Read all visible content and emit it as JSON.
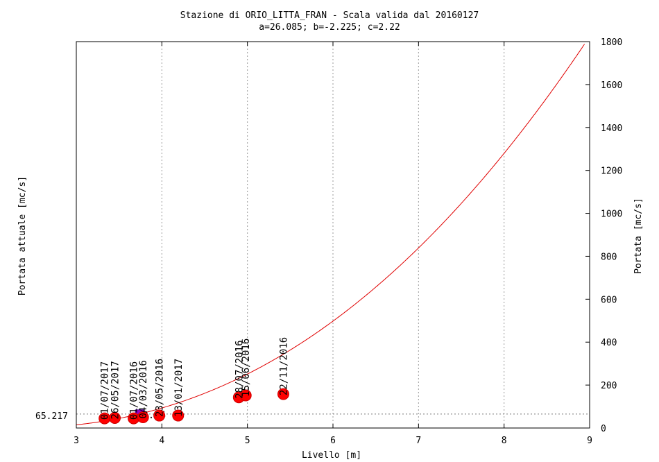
{
  "chart_data": {
    "type": "scatter",
    "title": "Stazione di ORIO_LITTA_FRAN - Scala valida dal 20160127",
    "subtitle": "a=26.085; b=-2.225; c=2.22",
    "xlabel": "Livello [m]",
    "ylabel_left": "Portata attuale [mc/s]",
    "ylabel_right": "Portata [mc/s]",
    "xlim": [
      3,
      9
    ],
    "ylim": [
      0,
      1800
    ],
    "x_ticks": [
      "3",
      "4",
      "5",
      "6",
      "7",
      "8",
      "9"
    ],
    "y_ticks": [
      "0",
      "200",
      "400",
      "600",
      "800",
      "1000",
      "1200",
      "1400",
      "1600",
      "1800"
    ],
    "grid": true,
    "curve": {
      "a": 26.085,
      "b": -2.225,
      "c": 2.22,
      "color": "#e00000"
    },
    "current": {
      "level": 3.74,
      "level_label": "3.74",
      "flow": 65.217,
      "flow_label": "65.217",
      "color": "#9900cc"
    },
    "points": [
      {
        "x": 3.33,
        "y": 45,
        "label": "01/07/2017"
      },
      {
        "x": 3.45,
        "y": 47,
        "label": "26/05/2017"
      },
      {
        "x": 3.67,
        "y": 45,
        "label": "01/07/2016"
      },
      {
        "x": 3.78,
        "y": 50,
        "label": "04/03/2016"
      },
      {
        "x": 3.97,
        "y": 58,
        "label": "23/05/2016"
      },
      {
        "x": 4.19,
        "y": 58,
        "label": "13/01/2017"
      },
      {
        "x": 4.9,
        "y": 143,
        "label": "28/07/2016"
      },
      {
        "x": 4.98,
        "y": 152,
        "label": "15/06/2016"
      },
      {
        "x": 5.42,
        "y": 158,
        "label": "22/11/2016"
      }
    ],
    "point_color": "#ff0000"
  }
}
